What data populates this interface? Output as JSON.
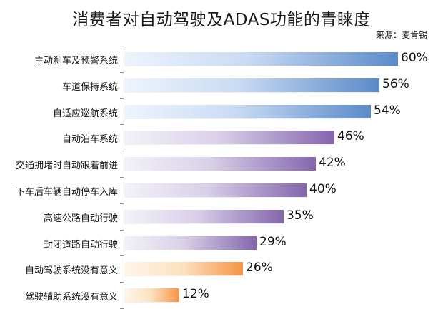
{
  "title": "消费者对自动驾驶及ADAS功能的青睐度",
  "source": "来源：麦肯锡",
  "chart_data": {
    "type": "bar",
    "orientation": "horizontal",
    "title": "消费者对自动驾驶及ADAS功能的青睐度",
    "subtitle": "来源：麦肯锡",
    "xlabel": "",
    "ylabel": "",
    "xlim": [
      0,
      60
    ],
    "grid": false,
    "legend": null,
    "categories": [
      "主动刹车及预警系统",
      "车道保持系统",
      "自适应巡航系统",
      "自动泊车系统",
      "交通拥堵时自动跟着前进",
      "下车后车辆自动停车入库",
      "高速公路自动行驶",
      "封闭道路自动行驶",
      "自动驾驶系统没有意义",
      "驾驶辅助系统没有意义"
    ],
    "values": [
      60,
      56,
      54,
      46,
      42,
      40,
      35,
      29,
      26,
      12
    ],
    "value_labels": [
      "60%",
      "56%",
      "54%",
      "46%",
      "42%",
      "40%",
      "35%",
      "29%",
      "26%",
      "12%"
    ],
    "bar_colors": [
      "blue",
      "blue",
      "blue",
      "purple",
      "purple",
      "purple",
      "purple",
      "purple",
      "orange",
      "orange"
    ],
    "palette": {
      "blue": "#5b8ac9",
      "purple": "#8466ac",
      "orange": "#f59445"
    }
  }
}
